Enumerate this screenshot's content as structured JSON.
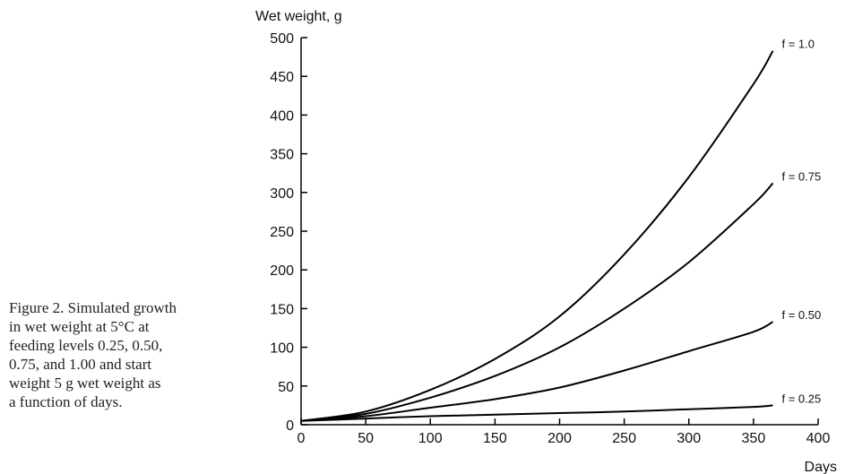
{
  "caption": {
    "lines": [
      "Figure 2. Simulated growth",
      "in wet weight at 5°C at",
      "feeding levels 0.25, 0.50,",
      "0.75, and 1.00 and start",
      "weight 5 g wet weight as",
      "a function of days."
    ]
  },
  "chart_data": {
    "type": "line",
    "title": "",
    "xlabel": "Days",
    "ylabel": "Wet weight, g",
    "xlim": [
      0,
      400
    ],
    "ylim": [
      0,
      500
    ],
    "xticks": [
      0,
      50,
      100,
      150,
      200,
      250,
      300,
      350,
      400
    ],
    "yticks": [
      0,
      50,
      100,
      150,
      200,
      250,
      300,
      350,
      400,
      450,
      500
    ],
    "grid": false,
    "legend": "none (series labelled at line ends)",
    "series": [
      {
        "name": "f = 1.0",
        "x": [
          0,
          50,
          100,
          150,
          200,
          250,
          300,
          350,
          365
        ],
        "y": [
          5,
          17,
          45,
          85,
          140,
          220,
          320,
          440,
          483
        ]
      },
      {
        "name": "f = 0.75",
        "x": [
          0,
          50,
          100,
          150,
          200,
          250,
          300,
          350,
          365
        ],
        "y": [
          5,
          14,
          35,
          63,
          100,
          150,
          210,
          285,
          312
        ]
      },
      {
        "name": "f = 0.50",
        "x": [
          0,
          50,
          100,
          150,
          200,
          250,
          300,
          350,
          365
        ],
        "y": [
          5,
          11,
          22,
          33,
          48,
          70,
          95,
          120,
          133
        ]
      },
      {
        "name": "f = 0.25",
        "x": [
          0,
          50,
          100,
          150,
          200,
          250,
          300,
          350,
          365
        ],
        "y": [
          5,
          8,
          11,
          13,
          15,
          17,
          20,
          23,
          25
        ]
      }
    ]
  }
}
